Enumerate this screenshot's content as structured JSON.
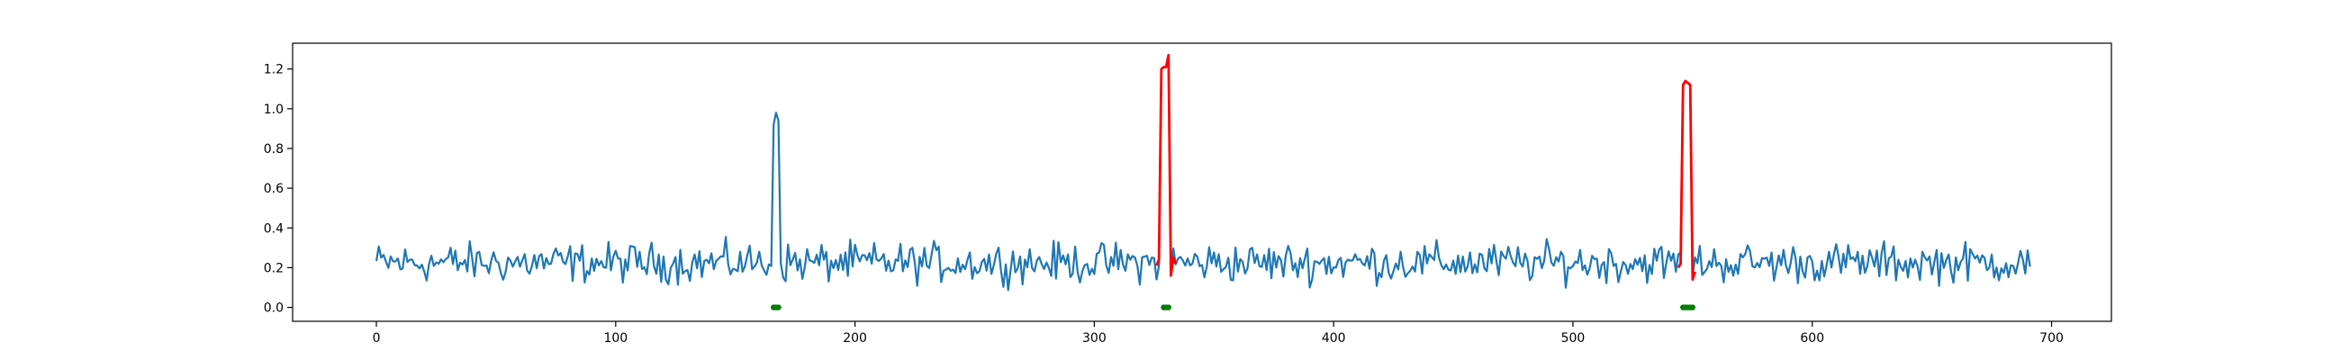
{
  "chart_data": {
    "type": "line",
    "title": "",
    "xlabel": "",
    "ylabel": "",
    "xlim": [
      -35,
      725
    ],
    "ylim": [
      -0.07,
      1.33
    ],
    "grid": false,
    "legend": "none",
    "x_ticks": [
      {
        "value": 0,
        "label": "0"
      },
      {
        "value": 100,
        "label": "100"
      },
      {
        "value": 200,
        "label": "200"
      },
      {
        "value": 300,
        "label": "300"
      },
      {
        "value": 400,
        "label": "400"
      },
      {
        "value": 500,
        "label": "500"
      },
      {
        "value": 600,
        "label": "600"
      },
      {
        "value": 700,
        "label": "700"
      }
    ],
    "y_ticks": [
      {
        "value": 0.0,
        "label": "0.0"
      },
      {
        "value": 0.2,
        "label": "0.2"
      },
      {
        "value": 0.4,
        "label": "0.4"
      },
      {
        "value": 0.6,
        "label": "0.6"
      },
      {
        "value": 0.8,
        "label": "0.8"
      },
      {
        "value": 1.0,
        "label": "1.0"
      },
      {
        "value": 1.2,
        "label": "1.2"
      }
    ],
    "series": [
      {
        "role": "signal",
        "color": "#1f77b4",
        "x_start": 0,
        "x_step": 1,
        "baseline_mean": 0.2,
        "baseline_noise_range": [
          0.08,
          0.37
        ],
        "values_peaks": [
          {
            "x": 166,
            "y": 0.92
          },
          {
            "x": 167,
            "y": 0.98
          },
          {
            "x": 168,
            "y": 0.94
          },
          {
            "x": 328,
            "y": 1.2
          },
          {
            "x": 329,
            "y": 1.21
          },
          {
            "x": 330,
            "y": 1.21
          },
          {
            "x": 331,
            "y": 1.27
          },
          {
            "x": 546,
            "y": 1.12
          },
          {
            "x": 547,
            "y": 1.14
          },
          {
            "x": 548,
            "y": 1.13
          },
          {
            "x": 549,
            "y": 1.12
          }
        ],
        "x_end": 691
      },
      {
        "role": "anomaly-highlight",
        "color": "#ff0000",
        "segments": [
          {
            "x": [
              326,
              327,
              328,
              329,
              330,
              331,
              332,
              333,
              334
            ],
            "y": [
              0.21,
              0.24,
              1.2,
              1.21,
              1.21,
              1.27,
              0.16,
              0.25,
              0.22
            ]
          },
          {
            "x": [
              544,
              545,
              546,
              547,
              548,
              549,
              550,
              551
            ],
            "y": [
              0.2,
              0.22,
              1.12,
              1.14,
              1.13,
              1.12,
              0.14,
              0.18
            ]
          }
        ]
      },
      {
        "role": "label-markers",
        "color": "#008000",
        "y": 0.0,
        "points": [
          166,
          167,
          168,
          329,
          330,
          331,
          546,
          547,
          548,
          549,
          550
        ]
      }
    ]
  }
}
